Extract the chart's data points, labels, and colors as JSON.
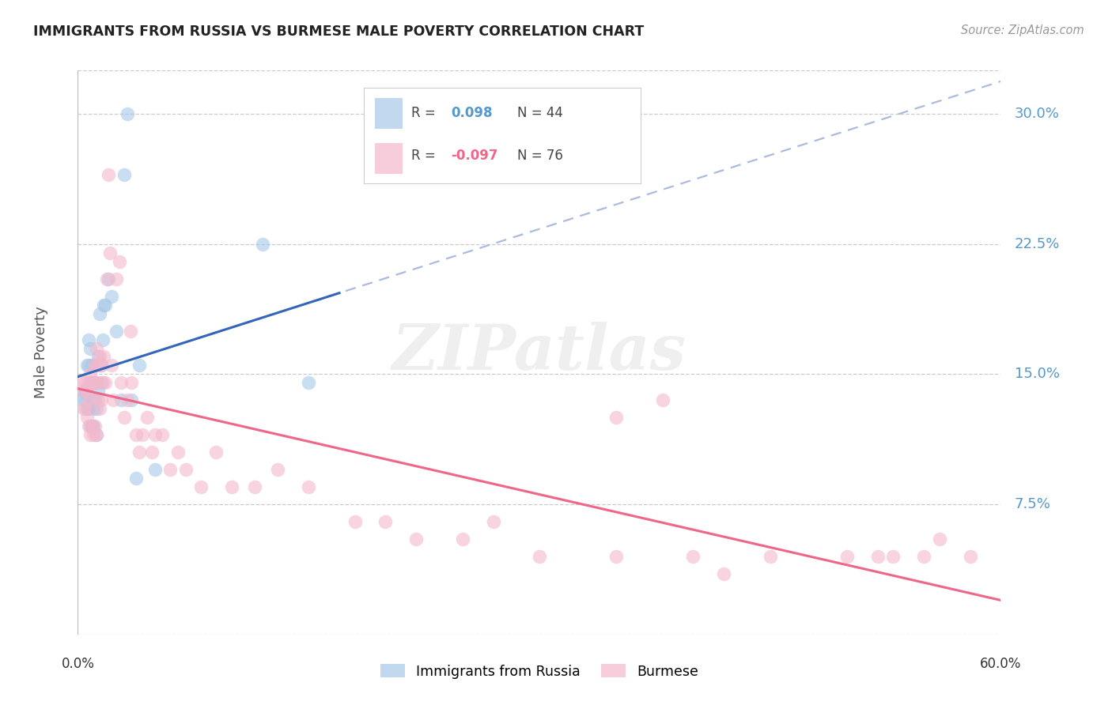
{
  "title": "IMMIGRANTS FROM RUSSIA VS BURMESE MALE POVERTY CORRELATION CHART",
  "source": "Source: ZipAtlas.com",
  "ylabel": "Male Poverty",
  "right_ytick_labels": [
    "30.0%",
    "22.5%",
    "15.0%",
    "7.5%"
  ],
  "right_ytick_values": [
    0.3,
    0.225,
    0.15,
    0.075
  ],
  "xmin": 0.0,
  "xmax": 0.6,
  "ymin": 0.0,
  "ymax": 0.325,
  "blue_color": "#a8c8e8",
  "pink_color": "#f4b8cc",
  "blue_line_color": "#3366bb",
  "pink_line_color": "#ee6688",
  "blue_dashed_color": "#aabbdd",
  "grid_color": "#cccccc",
  "background_color": "#ffffff",
  "watermark": "ZIPatlas",
  "legend_blue_r": "0.098",
  "legend_blue_n": "44",
  "legend_pink_r": "-0.097",
  "legend_pink_n": "76",
  "russia_x": [
    0.003,
    0.004,
    0.005,
    0.005,
    0.006,
    0.006,
    0.007,
    0.007,
    0.007,
    0.008,
    0.008,
    0.008,
    0.009,
    0.009,
    0.009,
    0.01,
    0.01,
    0.01,
    0.01,
    0.011,
    0.011,
    0.012,
    0.012,
    0.012,
    0.013,
    0.013,
    0.014,
    0.015,
    0.015,
    0.016,
    0.017,
    0.018,
    0.02,
    0.022,
    0.025,
    0.028,
    0.03,
    0.032,
    0.035,
    0.038,
    0.04,
    0.05,
    0.12,
    0.15
  ],
  "russia_y": [
    0.135,
    0.14,
    0.14,
    0.135,
    0.155,
    0.13,
    0.17,
    0.155,
    0.13,
    0.165,
    0.145,
    0.12,
    0.155,
    0.145,
    0.12,
    0.145,
    0.135,
    0.13,
    0.12,
    0.145,
    0.135,
    0.145,
    0.13,
    0.115,
    0.16,
    0.14,
    0.185,
    0.155,
    0.145,
    0.17,
    0.19,
    0.19,
    0.205,
    0.195,
    0.175,
    0.135,
    0.265,
    0.3,
    0.135,
    0.09,
    0.155,
    0.095,
    0.225,
    0.145
  ],
  "burmese_x": [
    0.003,
    0.004,
    0.004,
    0.005,
    0.005,
    0.006,
    0.006,
    0.007,
    0.007,
    0.008,
    0.008,
    0.008,
    0.009,
    0.009,
    0.01,
    0.01,
    0.011,
    0.011,
    0.012,
    0.012,
    0.012,
    0.013,
    0.013,
    0.014,
    0.014,
    0.015,
    0.015,
    0.016,
    0.017,
    0.018,
    0.019,
    0.02,
    0.021,
    0.022,
    0.023,
    0.025,
    0.027,
    0.028,
    0.03,
    0.032,
    0.034,
    0.035,
    0.038,
    0.04,
    0.042,
    0.045,
    0.048,
    0.05,
    0.055,
    0.06,
    0.065,
    0.07,
    0.08,
    0.09,
    0.1,
    0.115,
    0.13,
    0.15,
    0.18,
    0.2,
    0.22,
    0.25,
    0.27,
    0.3,
    0.35,
    0.38,
    0.4,
    0.45,
    0.5,
    0.52,
    0.53,
    0.55,
    0.56,
    0.58,
    0.35,
    0.42
  ],
  "burmese_y": [
    0.145,
    0.14,
    0.13,
    0.145,
    0.13,
    0.14,
    0.125,
    0.145,
    0.12,
    0.15,
    0.135,
    0.115,
    0.145,
    0.12,
    0.145,
    0.115,
    0.155,
    0.12,
    0.165,
    0.145,
    0.115,
    0.155,
    0.135,
    0.16,
    0.13,
    0.155,
    0.135,
    0.145,
    0.16,
    0.145,
    0.205,
    0.265,
    0.22,
    0.155,
    0.135,
    0.205,
    0.215,
    0.145,
    0.125,
    0.135,
    0.175,
    0.145,
    0.115,
    0.105,
    0.115,
    0.125,
    0.105,
    0.115,
    0.115,
    0.095,
    0.105,
    0.095,
    0.085,
    0.105,
    0.085,
    0.085,
    0.095,
    0.085,
    0.065,
    0.065,
    0.055,
    0.055,
    0.065,
    0.045,
    0.045,
    0.135,
    0.045,
    0.045,
    0.045,
    0.045,
    0.045,
    0.045,
    0.055,
    0.045,
    0.125,
    0.035
  ]
}
